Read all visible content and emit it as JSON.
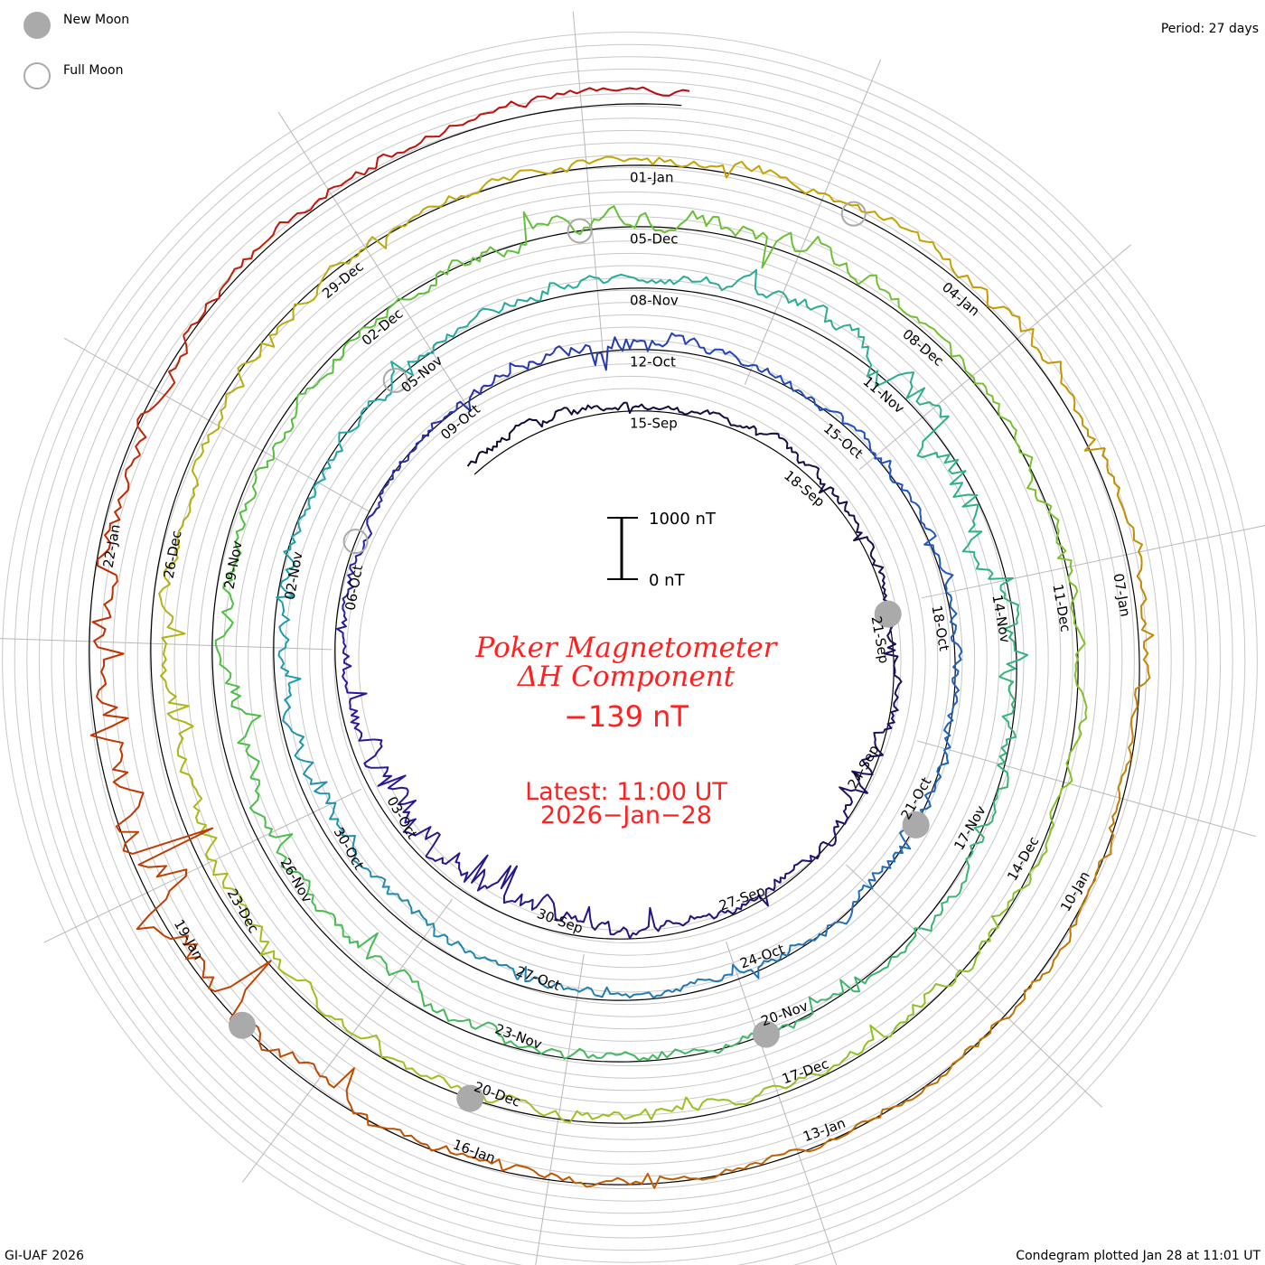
{
  "legend": {
    "new_moon": "New Moon",
    "full_moon": "Full Moon"
  },
  "period": "Period: 27 days",
  "footer_left": "GI-UAF 2026",
  "footer_right": "Condegram plotted Jan 28 at 11:01 UT",
  "chart_data": {
    "type": "line",
    "subtype": "spiral condegram",
    "title": "Poker Magnetometer",
    "subtitle": "ΔH Component",
    "current_value": "−139 nT",
    "latest_line1": "Latest: 11:00 UT",
    "latest_line2": "2026−Jan−28",
    "scale_bar": {
      "top_label": "1000 nT",
      "bottom_label": "0 nT",
      "top_value": 1000,
      "bottom_value": 0
    },
    "period_days": 27,
    "reference_date": "15-Sep",
    "start_day_offset": -3,
    "end_day_offset": 135.46,
    "units": "nT",
    "date_labels": [
      "15-Sep",
      "18-Sep",
      "21-Sep",
      "24-Sep",
      "27-Sep",
      "30-Sep",
      "03-Oct",
      "06-Oct",
      "09-Oct",
      "12-Oct",
      "15-Oct",
      "18-Oct",
      "21-Oct",
      "24-Oct",
      "27-Oct",
      "30-Oct",
      "02-Nov",
      "05-Nov",
      "08-Nov",
      "11-Nov",
      "14-Nov",
      "17-Nov",
      "20-Nov",
      "23-Nov",
      "26-Nov",
      "29-Nov",
      "02-Dec",
      "05-Dec",
      "08-Dec",
      "11-Dec",
      "14-Dec",
      "17-Dec",
      "20-Dec",
      "23-Dec",
      "26-Dec",
      "29-Dec",
      "01-Jan",
      "04-Jan",
      "07-Jan",
      "10-Jan",
      "13-Jan",
      "16-Jan",
      "19-Jan",
      "22-Jan"
    ],
    "new_moons_day_offset": [
      6,
      36,
      66,
      96,
      125
    ],
    "full_moons_day_offset": [
      22,
      51,
      80.5,
      110
    ],
    "daily_mean_nT": [
      150,
      200,
      120,
      60,
      100,
      150,
      120,
      80,
      60,
      40,
      30,
      -60,
      -40,
      -80,
      -100,
      -150,
      -200,
      -250,
      -300,
      -200,
      -250,
      -300,
      -200,
      -150,
      -100,
      -50,
      0,
      50,
      100,
      120,
      150,
      100,
      80,
      60,
      40,
      60,
      50,
      20,
      0,
      -30,
      -20,
      -50,
      -80,
      -100,
      -150,
      -180,
      -220,
      -250,
      -250,
      -200,
      -150,
      -100,
      -50,
      0,
      50,
      100,
      150,
      200,
      250,
      200,
      100,
      -200,
      -300,
      -150,
      -50,
      0,
      50,
      20,
      0,
      -30,
      -50,
      -80,
      -150,
      -200,
      -250,
      -300,
      -300,
      -250,
      -200,
      -150,
      -100,
      -50,
      0,
      100,
      150,
      200,
      150,
      100,
      50,
      0,
      50,
      100,
      50,
      0,
      -50,
      -100,
      -120,
      -150,
      -100,
      -80,
      -150,
      -200,
      -250,
      -300,
      -250,
      -200,
      -100,
      -50,
      0,
      50,
      80,
      100,
      120,
      150,
      180,
      200,
      150,
      100,
      -50,
      0,
      50,
      30,
      0,
      -20,
      -30,
      -50,
      -80,
      -100,
      -200,
      -400,
      -300,
      -200,
      -100,
      -50,
      50,
      100,
      150,
      200,
      200
    ],
    "daily_range_nT": [
      300,
      300,
      250,
      200,
      200,
      250,
      300,
      250,
      200,
      300,
      350,
      500,
      400,
      300,
      300,
      300,
      400,
      600,
      700,
      900,
      900,
      600,
      400,
      300,
      300,
      300,
      250,
      250,
      300,
      400,
      350,
      300,
      300,
      300,
      250,
      250,
      300,
      300,
      300,
      400,
      300,
      250,
      250,
      250,
      300,
      300,
      300,
      400,
      500,
      400,
      400,
      350,
      300,
      300,
      300,
      300,
      350,
      400,
      500,
      600,
      900,
      1000,
      800,
      600,
      400,
      300,
      300,
      300,
      300,
      300,
      300,
      300,
      400,
      400,
      400,
      500,
      600,
      500,
      400,
      350,
      300,
      300,
      400,
      600,
      700,
      600,
      400,
      300,
      300,
      300,
      300,
      300,
      250,
      250,
      300,
      350,
      300,
      300,
      300,
      300,
      350,
      400,
      500,
      500,
      400,
      300,
      300,
      300,
      300,
      250,
      250,
      250,
      300,
      300,
      400,
      400,
      300,
      250,
      200,
      250,
      250,
      200,
      200,
      200,
      250,
      300,
      350,
      500,
      1200,
      1500,
      900,
      500,
      400,
      300,
      300,
      250,
      250,
      300,
      200
    ],
    "colors": {
      "start": "#100830",
      "mid_blue": "#2050c0",
      "teal": "#20a8a8",
      "green": "#50c040",
      "yellow": "#c8a000",
      "end": "#c00010",
      "moon": "#aaaaaa",
      "grid": "#c8c8c8",
      "title": "#ff2020"
    }
  }
}
